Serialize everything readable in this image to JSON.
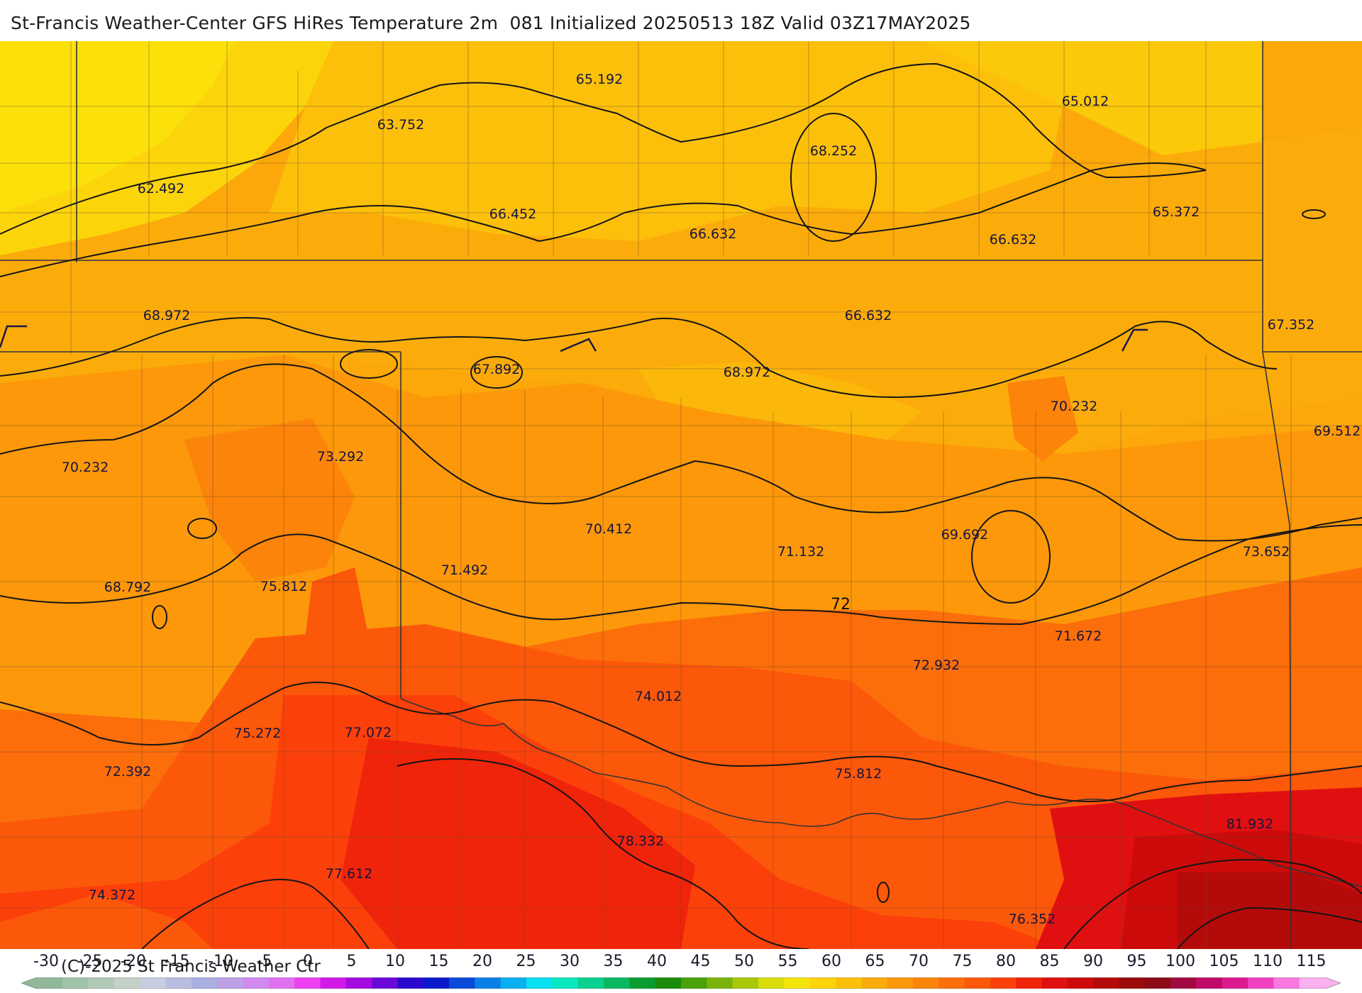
{
  "title": "St-Francis Weather-Center GFS HiRes Temperature 2m  081 Initialized 20250513 18Z Valid 03Z17MAY2025",
  "copyright": "(C)-2025 St Francis Weather Ctr",
  "contour_label": "72",
  "temperature_labels": [
    {
      "text": "65.192"
    },
    {
      "text": "65.012"
    },
    {
      "text": "63.752"
    },
    {
      "text": "68.252"
    },
    {
      "text": "62.492"
    },
    {
      "text": "66.452"
    },
    {
      "text": "66.632"
    },
    {
      "text": "66.632"
    },
    {
      "text": "65.372"
    },
    {
      "text": "68.972"
    },
    {
      "text": "66.632"
    },
    {
      "text": "67.352"
    },
    {
      "text": "67.892"
    },
    {
      "text": "68.972"
    },
    {
      "text": "70.232"
    },
    {
      "text": "69.512"
    },
    {
      "text": "70.232"
    },
    {
      "text": "73.292"
    },
    {
      "text": "70.412"
    },
    {
      "text": "69.692"
    },
    {
      "text": "71.132"
    },
    {
      "text": "73.652"
    },
    {
      "text": "71.492"
    },
    {
      "text": "68.792"
    },
    {
      "text": "75.812"
    },
    {
      "text": "71.672"
    },
    {
      "text": "72.932"
    },
    {
      "text": "74.012"
    },
    {
      "text": "75.272"
    },
    {
      "text": "77.072"
    },
    {
      "text": "72.392"
    },
    {
      "text": "75.812"
    },
    {
      "text": "81.932"
    },
    {
      "text": "78.332"
    },
    {
      "text": "77.612"
    },
    {
      "text": "74.372"
    },
    {
      "text": "76.352"
    }
  ],
  "colorbar": {
    "ticks": [
      "-30",
      "-25",
      "-20",
      "-15",
      "-10",
      "-5",
      "0",
      "5",
      "10",
      "15",
      "20",
      "25",
      "30",
      "35",
      "40",
      "45",
      "50",
      "55",
      "60",
      "65",
      "70",
      "75",
      "80",
      "85",
      "90",
      "95",
      "100",
      "105",
      "110",
      "115"
    ],
    "colors": [
      "#8fb89a",
      "#9fc3a8",
      "#b3c9b8",
      "#c4d0c8",
      "#c9cde0",
      "#b9bee0",
      "#a9b0e0",
      "#bea0e6",
      "#d08aee",
      "#e070f2",
      "#ee3ff2",
      "#d21ae8",
      "#a50ae0",
      "#6a08d8",
      "#2a0ad0",
      "#0a1acc",
      "#0a4ad8",
      "#0a80e6",
      "#0ab0f0",
      "#0ae0f2",
      "#0ae8c0",
      "#0ad090",
      "#0ab860",
      "#0a9c30",
      "#1a8c0a",
      "#4aa00a",
      "#7ab40a",
      "#a8c80a",
      "#d8dc0a",
      "#f4e60a",
      "#fcd40a",
      "#fcc00a",
      "#fcac0a",
      "#fc980a",
      "#fc840a",
      "#fc6e0a",
      "#fc580a",
      "#fc400a",
      "#f0240a",
      "#e01010",
      "#cc0a0a",
      "#b40a0a",
      "#9c0a0a",
      "#8c0a14",
      "#a00a40",
      "#c00a6a",
      "#dc1a90",
      "#f040c0",
      "#f878e0",
      "#fcb0f0"
    ]
  }
}
